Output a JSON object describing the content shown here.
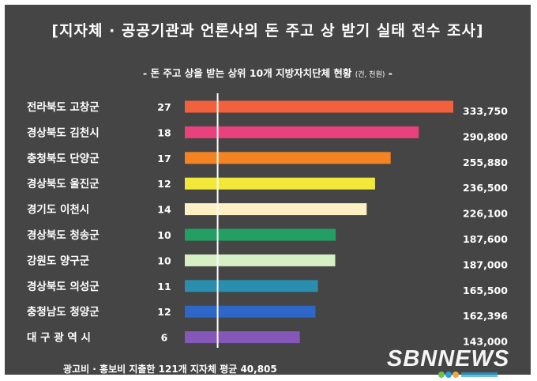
{
  "title": "[지자체 · 공공기관과 언론사의 돈 주고 상 받기 실태 전수 조사]",
  "subtitle": "- 돈 주고 상을 받는 상위 10개 지방자치단체 현황",
  "subtitle_unit": "(건, 천원)",
  "footer": "광고비 · 홍보비 지출한 121개 지자체 평균 40,805",
  "watermark": "SBNNEWS",
  "colors": {
    "panel": "#454545",
    "divider": "#ffffff"
  },
  "chart_data": {
    "type": "bar",
    "orientation": "horizontal",
    "average_line": 40805,
    "xlim": [
      0,
      333750
    ],
    "categories": [
      "전라북도 고창군",
      "경상북도 김천시",
      "충청북도 단양군",
      "경상북도 울진군",
      "경기도   이천시",
      "경상북도 청송군",
      "강원도    양구군",
      "경상북도 의성군",
      "충청남도 청양군",
      "대 구 광 역 시"
    ],
    "counts": [
      "27",
      "18",
      "17",
      "12",
      "14",
      "10",
      "10",
      "11",
      "12",
      "6"
    ],
    "values": [
      333750,
      290800,
      255880,
      236500,
      226100,
      187600,
      187000,
      165500,
      162396,
      143000
    ],
    "value_labels": [
      "333,750",
      "290,800",
      "255,880",
      "236,500",
      "226,100",
      "187,600",
      "187,000",
      "165,500",
      "162,396",
      "143,000"
    ],
    "bar_colors": [
      "#f2603c",
      "#e8417c",
      "#f48422",
      "#f2e83a",
      "#fdf0c4",
      "#22a063",
      "#d6efc4",
      "#2a8fae",
      "#2f67c8",
      "#8557b8"
    ]
  }
}
